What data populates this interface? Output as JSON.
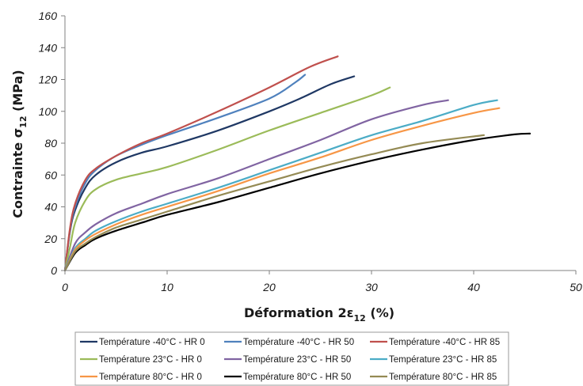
{
  "chart_data": {
    "type": "line",
    "xlabel": "Déformation 2ε",
    "xlabel_sub": "12",
    "xlabel_unit": " (%)",
    "ylabel": "Contrainte σ",
    "ylabel_sub": "12",
    "ylabel_unit": " (MPa)",
    "xlim": [
      0,
      50
    ],
    "ylim": [
      0,
      160
    ],
    "x_ticks": [
      0,
      10,
      20,
      30,
      40,
      50
    ],
    "y_ticks": [
      0,
      20,
      40,
      60,
      80,
      100,
      120,
      140,
      160
    ],
    "grid": false,
    "legend_position": "bottom",
    "series": [
      {
        "name": "Température -40°C - HR 0",
        "color": "#1f3864",
        "x": [
          0,
          0.5,
          1,
          2,
          3,
          5,
          7.5,
          10,
          15,
          20,
          23,
          26,
          28.3
        ],
        "y": [
          0,
          25,
          38,
          52,
          60,
          68,
          74,
          78,
          88,
          100,
          108,
          117,
          122
        ]
      },
      {
        "name": "Température -40°C - HR 50",
        "color": "#4f81bd",
        "x": [
          0,
          0.5,
          1,
          2,
          3,
          5,
          7.5,
          10,
          15,
          20,
          22.5,
          23.5
        ],
        "y": [
          0,
          26,
          40,
          55,
          63,
          72,
          79,
          85,
          96,
          108,
          118,
          123
        ]
      },
      {
        "name": "Température -40°C - HR 85",
        "color": "#c0504d",
        "x": [
          0,
          0.5,
          1,
          2,
          3,
          5,
          7.5,
          10,
          15,
          20,
          24,
          26.7
        ],
        "y": [
          0,
          27,
          42,
          57,
          64,
          72,
          80,
          86,
          100,
          115,
          128,
          134.5
        ]
      },
      {
        "name": "Température 23°C - HR 0",
        "color": "#9bbb59",
        "x": [
          0,
          0.5,
          1,
          2,
          3,
          5,
          7.5,
          10,
          15,
          20,
          25,
          30,
          31.8
        ],
        "y": [
          0,
          15,
          30,
          44,
          51,
          57,
          61,
          65,
          76,
          88,
          99,
          110,
          115
        ]
      },
      {
        "name": "Température 23°C - HR 50",
        "color": "#8064a2",
        "x": [
          0,
          1,
          2,
          3,
          5,
          7.5,
          10,
          15,
          20,
          25,
          30,
          35,
          37.5
        ],
        "y": [
          0,
          17,
          24,
          29,
          36,
          42,
          48,
          58,
          70,
          82,
          95,
          104,
          107
        ]
      },
      {
        "name": "Température 23°C - HR 85",
        "color": "#4bacc6",
        "x": [
          0,
          1,
          2,
          3,
          5,
          7.5,
          10,
          15,
          20,
          25,
          30,
          35,
          40,
          42.3
        ],
        "y": [
          0,
          14,
          20,
          25,
          31,
          37,
          42,
          52,
          63,
          74,
          85,
          94,
          104,
          107
        ]
      },
      {
        "name": "Température 80°C - HR 0",
        "color": "#f79646",
        "x": [
          0,
          1,
          2,
          3,
          5,
          7.5,
          10,
          15,
          20,
          25,
          30,
          35,
          40,
          42.5
        ],
        "y": [
          0,
          13,
          19,
          23,
          29,
          35,
          40,
          50,
          61,
          71,
          82,
          91,
          99,
          102
        ]
      },
      {
        "name": "Température 80°C - HR 50",
        "color": "#000000",
        "x": [
          0,
          1,
          2,
          3,
          5,
          7.5,
          10,
          15,
          20,
          25,
          30,
          35,
          40,
          44,
          45.5
        ],
        "y": [
          0,
          11,
          16,
          20,
          25,
          30,
          35,
          43,
          52,
          61,
          69,
          76,
          82,
          85.5,
          86
        ]
      },
      {
        "name": "Température 80°C - HR 85",
        "color": "#948a54",
        "x": [
          0,
          1,
          2,
          3,
          5,
          7.5,
          10,
          15,
          20,
          25,
          30,
          35,
          41
        ],
        "y": [
          0,
          12,
          17,
          21,
          27,
          32,
          37,
          47,
          56,
          65,
          73,
          80,
          85
        ]
      }
    ]
  }
}
